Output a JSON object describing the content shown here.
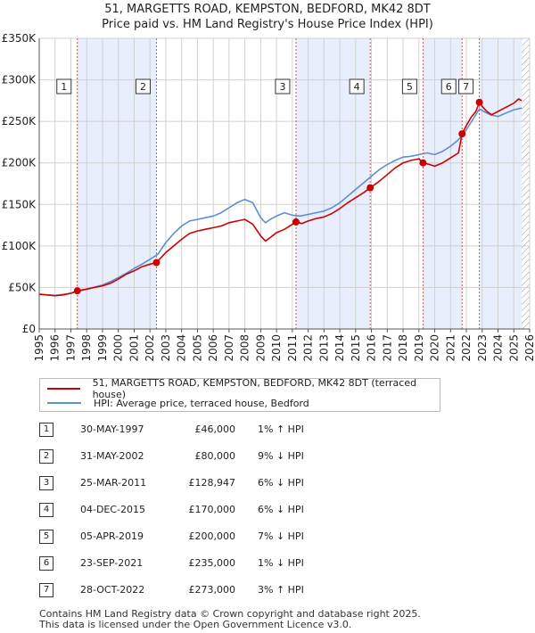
{
  "chart_data": {
    "type": "line",
    "title": "51, MARGETTS ROAD, KEMPSTON, BEDFORD, MK42 8DT",
    "subtitle": "Price paid vs. HM Land Registry's House Price Index (HPI)",
    "xlabel": "",
    "ylabel": "",
    "xlim": [
      1995,
      2026
    ],
    "ylim": [
      0,
      350000
    ],
    "x_ticks": [
      "1995",
      "1996",
      "1997",
      "1998",
      "1999",
      "2000",
      "2001",
      "2002",
      "2003",
      "2004",
      "2005",
      "2006",
      "2007",
      "2008",
      "2009",
      "2010",
      "2011",
      "2012",
      "2013",
      "2014",
      "2015",
      "2016",
      "2017",
      "2018",
      "2019",
      "2020",
      "2021",
      "2022",
      "2023",
      "2024",
      "2025",
      "2026"
    ],
    "y_ticks": [
      {
        "value": 0,
        "label": "£0"
      },
      {
        "value": 50000,
        "label": "£50K"
      },
      {
        "value": 100000,
        "label": "£100K"
      },
      {
        "value": 150000,
        "label": "£150K"
      },
      {
        "value": 200000,
        "label": "£200K"
      },
      {
        "value": 250000,
        "label": "£250K"
      },
      {
        "value": 300000,
        "label": "£300K"
      },
      {
        "value": 350000,
        "label": "£350K"
      }
    ],
    "grid": true,
    "shaded_periods": [
      [
        1997.41,
        2002.41
      ],
      [
        2011.23,
        2015.92
      ],
      [
        2019.26,
        2021.73
      ],
      [
        2022.82,
        2025.5
      ]
    ],
    "hatched_after": 2025.5,
    "series": [
      {
        "name": "51, MARGETTS ROAD, KEMPSTON, BEDFORD, MK42 8DT (terraced house)",
        "color": "#cc0000",
        "x": [
          1995.0,
          1995.5,
          1996.0,
          1996.5,
          1997.0,
          1997.41,
          1998.0,
          1998.5,
          1999.0,
          1999.5,
          2000.0,
          2000.5,
          2001.0,
          2001.5,
          2002.0,
          2002.41,
          2003.0,
          2003.5,
          2004.0,
          2004.5,
          2005.0,
          2005.5,
          2006.0,
          2006.5,
          2007.0,
          2007.5,
          2008.0,
          2008.5,
          2009.0,
          2009.3,
          2009.6,
          2010.0,
          2010.5,
          2011.0,
          2011.23,
          2011.6,
          2012.0,
          2012.5,
          2013.0,
          2013.5,
          2014.0,
          2014.5,
          2015.0,
          2015.5,
          2015.92,
          2016.5,
          2017.0,
          2017.5,
          2018.0,
          2018.5,
          2019.0,
          2019.26,
          2019.7,
          2020.0,
          2020.5,
          2021.0,
          2021.5,
          2021.73,
          2022.0,
          2022.3,
          2022.6,
          2022.82,
          2023.0,
          2023.3,
          2023.6,
          2024.0,
          2024.3,
          2024.6,
          2025.0,
          2025.3,
          2025.5
        ],
        "values": [
          42000,
          41000,
          40000,
          41000,
          43000,
          46000,
          48000,
          50000,
          52000,
          55000,
          60000,
          66000,
          70000,
          75000,
          78000,
          80000,
          92000,
          100000,
          108000,
          115000,
          118000,
          120000,
          122000,
          124000,
          128000,
          130000,
          132000,
          126000,
          112000,
          106000,
          110000,
          116000,
          120000,
          126000,
          128947,
          127000,
          130000,
          133000,
          135000,
          139000,
          145000,
          152000,
          158000,
          164000,
          170000,
          178000,
          186000,
          194000,
          200000,
          203000,
          205000,
          200000,
          198000,
          196000,
          200000,
          206000,
          212000,
          235000,
          245000,
          255000,
          262000,
          273000,
          268000,
          262000,
          258000,
          262000,
          265000,
          268000,
          272000,
          277000,
          275000
        ]
      },
      {
        "name": "HPI: Average price, terraced house, Bedford",
        "color": "#5b8fd4",
        "x": [
          1995.0,
          1995.5,
          1996.0,
          1996.5,
          1997.0,
          1997.5,
          1998.0,
          1998.5,
          1999.0,
          1999.5,
          2000.0,
          2000.5,
          2001.0,
          2001.5,
          2002.0,
          2002.5,
          2003.0,
          2003.5,
          2004.0,
          2004.5,
          2005.0,
          2005.5,
          2006.0,
          2006.5,
          2007.0,
          2007.5,
          2008.0,
          2008.5,
          2009.0,
          2009.3,
          2009.6,
          2010.0,
          2010.5,
          2011.0,
          2011.5,
          2012.0,
          2012.5,
          2013.0,
          2013.5,
          2014.0,
          2014.5,
          2015.0,
          2015.5,
          2016.0,
          2016.5,
          2017.0,
          2017.5,
          2018.0,
          2018.5,
          2019.0,
          2019.5,
          2020.0,
          2020.5,
          2021.0,
          2021.5,
          2022.0,
          2022.5,
          2022.82,
          2023.0,
          2023.5,
          2024.0,
          2024.5,
          2025.0,
          2025.5
        ],
        "values": [
          41500,
          41000,
          40500,
          41500,
          43000,
          45500,
          48000,
          50500,
          53000,
          57000,
          62000,
          67000,
          73000,
          78000,
          84000,
          90000,
          104000,
          115000,
          124000,
          130000,
          132000,
          134000,
          136000,
          140000,
          146000,
          152000,
          156000,
          152000,
          134000,
          128000,
          132000,
          136000,
          140000,
          137000,
          136000,
          138000,
          140000,
          142000,
          146000,
          152000,
          160000,
          168000,
          176000,
          184000,
          192000,
          198000,
          203000,
          207000,
          208000,
          210000,
          212000,
          210000,
          214000,
          220000,
          228000,
          240000,
          255000,
          265000,
          263000,
          258000,
          256000,
          260000,
          264000,
          266000
        ]
      }
    ],
    "events": [
      {
        "label": "1",
        "x": 1997.41,
        "value": 46000
      },
      {
        "label": "2",
        "x": 2002.41,
        "value": 80000
      },
      {
        "label": "3",
        "x": 2011.23,
        "value": 128947
      },
      {
        "label": "4",
        "x": 2015.92,
        "value": 170000
      },
      {
        "label": "5",
        "x": 2019.26,
        "value": 200000
      },
      {
        "label": "6",
        "x": 2021.73,
        "value": 235000
      },
      {
        "label": "7",
        "x": 2022.82,
        "value": 273000
      }
    ]
  },
  "legend": {
    "items": [
      {
        "label": "51, MARGETTS ROAD, KEMPSTON, BEDFORD, MK42 8DT (terraced house)",
        "color": "#cc0000"
      },
      {
        "label": "HPI: Average price, terraced house, Bedford",
        "color": "#5b8fd4"
      }
    ]
  },
  "sales": [
    {
      "num": "1",
      "date": "30-MAY-1997",
      "price": "£46,000",
      "hpi": "1% ↑ HPI"
    },
    {
      "num": "2",
      "date": "31-MAY-2002",
      "price": "£80,000",
      "hpi": "9% ↓ HPI"
    },
    {
      "num": "3",
      "date": "25-MAR-2011",
      "price": "£128,947",
      "hpi": "6% ↓ HPI"
    },
    {
      "num": "4",
      "date": "04-DEC-2015",
      "price": "£170,000",
      "hpi": "6% ↓ HPI"
    },
    {
      "num": "5",
      "date": "05-APR-2019",
      "price": "£200,000",
      "hpi": "7% ↓ HPI"
    },
    {
      "num": "6",
      "date": "23-SEP-2021",
      "price": "£235,000",
      "hpi": "1% ↓ HPI"
    },
    {
      "num": "7",
      "date": "28-OCT-2022",
      "price": "£273,000",
      "hpi": "3% ↑ HPI"
    }
  ],
  "footer": {
    "line1": "Contains HM Land Registry data © Crown copyright and database right 2025.",
    "line2": "This data is licensed under the Open Government Licence v3.0."
  }
}
